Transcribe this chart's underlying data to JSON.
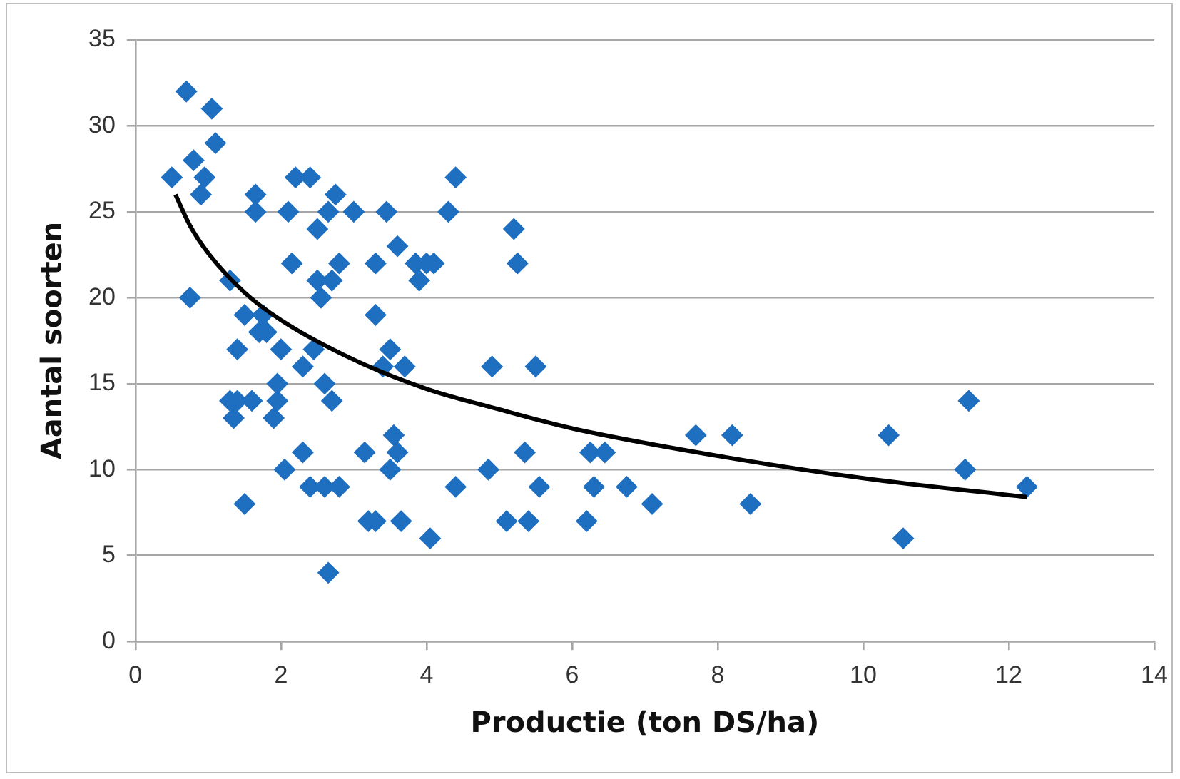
{
  "chart_data": {
    "type": "scatter",
    "xlabel": "Productie (ton DS/ha)",
    "ylabel": "Aantal soorten",
    "xlim": [
      0,
      14
    ],
    "xticks": [
      0,
      2,
      4,
      6,
      8,
      10,
      12,
      14
    ],
    "ylim": [
      0,
      35
    ],
    "yticks": [
      0,
      5,
      10,
      15,
      20,
      25,
      30,
      35
    ],
    "grid": "y",
    "legend": false,
    "marker": "diamond",
    "series": [
      {
        "color": "#1f6fc1",
        "x": [
          0.5,
          0.7,
          0.75,
          0.8,
          0.9,
          0.95,
          1.05,
          1.1,
          1.3,
          1.3,
          1.35,
          1.4,
          1.4,
          1.5,
          1.5,
          1.6,
          1.65,
          1.65,
          1.7,
          1.75,
          1.8,
          1.9,
          1.95,
          1.95,
          2.0,
          2.05,
          2.1,
          2.15,
          2.2,
          2.3,
          2.3,
          2.4,
          2.4,
          2.45,
          2.5,
          2.5,
          2.55,
          2.6,
          2.6,
          2.65,
          2.65,
          2.7,
          2.7,
          2.75,
          2.8,
          2.8,
          3.0,
          3.15,
          3.2,
          3.3,
          3.3,
          3.3,
          3.4,
          3.45,
          3.5,
          3.5,
          3.55,
          3.6,
          3.6,
          3.65,
          3.7,
          3.85,
          3.9,
          4.0,
          4.05,
          4.1,
          4.3,
          4.4,
          4.4,
          4.85,
          4.9,
          5.1,
          5.2,
          5.25,
          5.35,
          5.4,
          5.5,
          5.55,
          6.2,
          6.25,
          6.3,
          6.45,
          6.75,
          7.1,
          7.7,
          8.2,
          8.45,
          10.35,
          10.55,
          11.45,
          11.4,
          12.25
        ],
        "values": [
          27,
          32,
          20,
          28,
          26,
          27,
          31,
          29,
          21,
          14,
          13,
          17,
          14,
          19,
          8,
          14,
          26,
          25,
          18,
          19,
          18,
          13,
          14,
          15,
          17,
          10,
          25,
          22,
          27,
          16,
          11,
          9,
          27,
          17,
          21,
          24,
          20,
          15,
          9,
          4,
          25,
          21,
          14,
          26,
          22,
          9,
          25,
          11,
          7,
          7,
          19,
          22,
          16,
          25,
          17,
          10,
          12,
          11,
          23,
          7,
          16,
          22,
          21,
          22,
          6,
          22,
          25,
          9,
          27,
          10,
          16,
          7,
          24,
          22,
          11,
          7,
          16,
          9,
          7,
          11,
          9,
          11,
          9,
          8,
          12,
          12,
          8,
          12,
          6,
          14,
          10,
          9
        ]
      },
      {
        "type": "line",
        "color": "#000000",
        "marker": "none",
        "line_style": "solid",
        "x": [
          0.55,
          0.75,
          1,
          1.5,
          2,
          3,
          4,
          5,
          6,
          8,
          10,
          12.25
        ],
        "values": [
          26.0,
          24.2,
          22.6,
          20.3,
          18.7,
          16.4,
          14.7,
          13.5,
          12.4,
          10.8,
          9.5,
          8.4
        ]
      }
    ]
  }
}
